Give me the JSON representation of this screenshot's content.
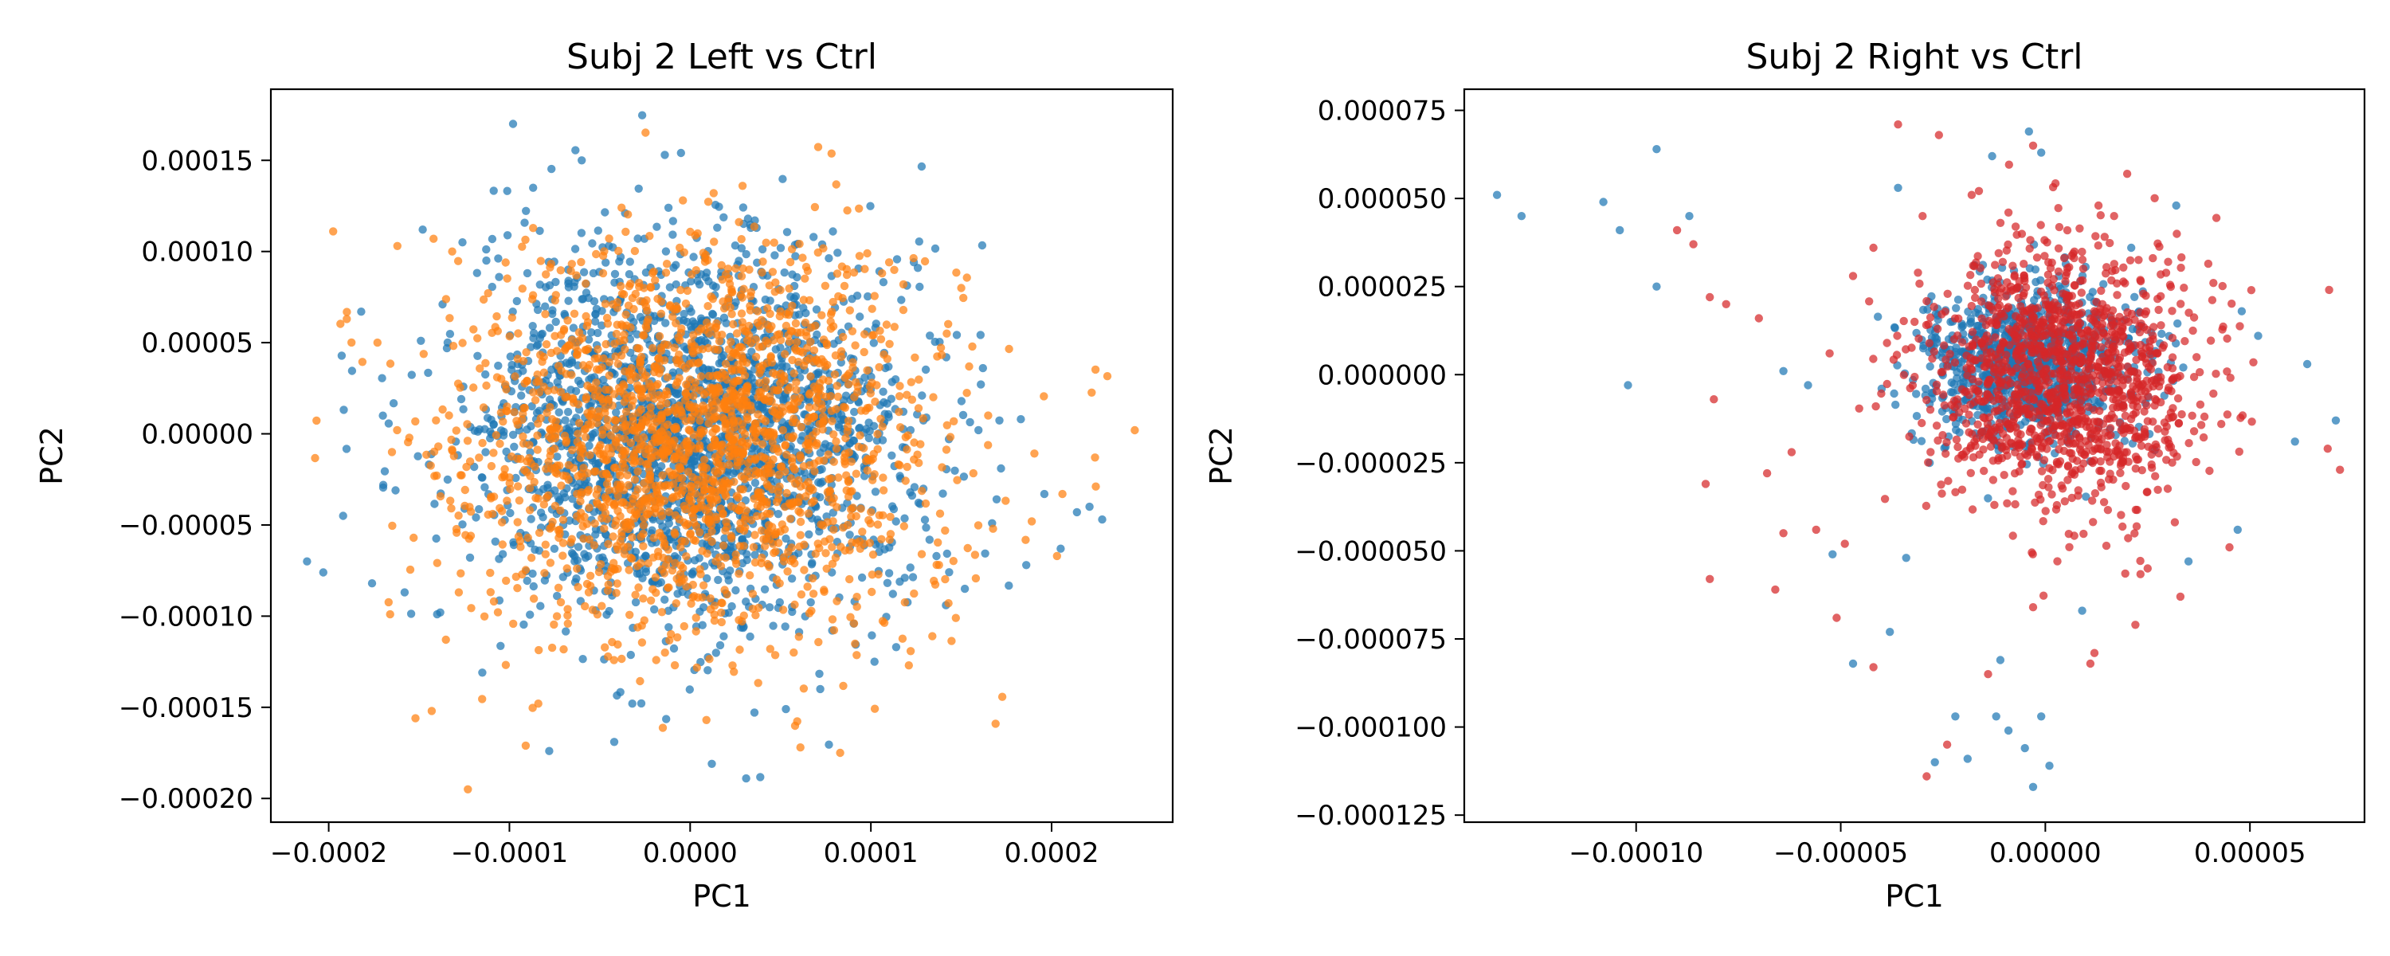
{
  "chart_data": [
    {
      "type": "scatter",
      "title": "Subj 2  Left vs Ctrl",
      "xlabel": "PC1",
      "ylabel": "PC2",
      "xlim": [
        -0.000232,
        0.000267
      ],
      "ylim": [
        -0.000213,
        0.000189
      ],
      "x_ticks": [
        -0.0002,
        -0.0001,
        0.0,
        0.0001,
        0.0002
      ],
      "x_tick_labels": [
        "−0.0002",
        "−0.0001",
        "0.0000",
        "0.0001",
        "0.0002"
      ],
      "y_ticks": [
        -0.0002,
        -0.00015,
        -0.0001,
        -5e-05,
        0.0,
        5e-05,
        0.0001,
        0.00015
      ],
      "y_tick_labels": [
        "−0.00020",
        "−0.00015",
        "−0.00010",
        "−0.00005",
        "0.00000",
        "0.00005",
        "0.00010",
        "0.00015"
      ],
      "grid": false,
      "legend": "none",
      "series": [
        {
          "color": "#1f77b4",
          "core": {
            "cx": 0.0,
            "cy": 0.0,
            "sx": 5.8e-05,
            "sy": 4.9e-05,
            "n": 2200
          },
          "outliers": [
            [
              -0.000212,
              -7e-05
            ],
            [
              -0.000203,
              -7.6e-05
            ],
            [
              -0.000176,
              -8.2e-05
            ],
            [
              -0.000163,
              -3.1e-05
            ],
            [
              -0.00017,
              1e-05
            ],
            [
              -0.000182,
              6.7e-05
            ],
            [
              -9.8e-05,
              0.00017
            ],
            [
              -6e-05,
              0.00015
            ],
            [
              -0.000148,
              0.000112
            ],
            [
              -7.8e-05,
              -0.000174
            ],
            [
              -4.2e-05,
              -0.000169
            ],
            [
              -3.2e-05,
              -0.000148
            ],
            [
              1.2e-05,
              -0.000181
            ],
            [
              3.1e-05,
              -0.000189
            ],
            [
              5.3e-05,
              -0.000151
            ],
            [
              7.2e-05,
              -0.00014
            ],
            [
              0.000102,
              -0.000125
            ],
            [
              0.000114,
              -0.000117
            ],
            [
              0.000152,
              -8.5e-05
            ],
            [
              0.000186,
              -7.2e-05
            ],
            [
              0.000205,
              -6.3e-05
            ],
            [
              0.000214,
              -4.3e-05
            ],
            [
              0.000228,
              -4.7e-05
            ],
            [
              0.000221,
              -4e-05
            ],
            [
              0.000196,
              -3.3e-05
            ],
            [
              0.000183,
              8e-06
            ],
            [
              0.000172,
              -1.9e-05
            ],
            [
              0.000162,
              3.6e-05
            ],
            [
              0.000126,
              9.1e-05
            ],
            [
              7.9e-05,
              0.000111
            ],
            [
              3.2e-05,
              0.000118
            ],
            [
              -1.2e-05,
              0.000124
            ],
            [
              -3.6e-05,
              0.000121
            ],
            [
              -0.000126,
              0.000105
            ],
            [
              -0.000137,
              7.1e-05
            ],
            [
              -0.000149,
              5.1e-05
            ],
            [
              -0.00014,
              -9.9e-05
            ],
            [
              -0.000115,
              -0.000131
            ],
            [
              -0.000158,
              -8.7e-05
            ],
            [
              -0.000192,
              -4.5e-05
            ]
          ]
        },
        {
          "color": "#ff7f0e",
          "core": {
            "cx": 5e-06,
            "cy": -2e-06,
            "sx": 6.3e-05,
            "sy": 5.1e-05,
            "n": 2000
          },
          "outliers": [
            [
              -0.000123,
              -0.000195
            ],
            [
              -0.000143,
              -0.000152
            ],
            [
              -0.000152,
              -0.000156
            ],
            [
              -9.1e-05,
              -0.000171
            ],
            [
              -8.4e-05,
              -0.000148
            ],
            [
              9e-06,
              -0.000157
            ],
            [
              6.1e-05,
              -0.000172
            ],
            [
              8.3e-05,
              -0.000175
            ],
            [
              0.000169,
              -0.000159
            ],
            [
              0.000121,
              -0.000127
            ],
            [
              0.000246,
              2e-06
            ],
            [
              0.000224,
              -1.3e-05
            ],
            [
              0.000206,
              -3.3e-05
            ],
            [
              0.000203,
              -6.7e-05
            ],
            [
              0.000189,
              -4.8e-05
            ],
            [
              0.00015,
              8e-05
            ],
            [
              0.000142,
              5.5e-05
            ],
            [
              -0.00019,
              6.3e-05
            ],
            [
              -0.000173,
              5e-05
            ],
            [
              -0.000162,
              0.000103
            ],
            [
              -0.000142,
              0.000107
            ],
            [
              -0.000165,
              -1e-05
            ],
            [
              -0.000153,
              -5.7e-05
            ],
            [
              -0.000166,
              -9.9e-05
            ],
            [
              -0.000128,
              -8.7e-05
            ],
            [
              2.9e-05,
              0.000136
            ],
            [
              1.3e-05,
              0.000132
            ],
            [
              -4e-06,
              0.000128
            ],
            [
              9.8e-05,
              9.9e-05
            ],
            [
              0.000118,
              8.2e-05
            ],
            [
              0.000147,
              -0.000101
            ],
            [
              0.000134,
              -0.000111
            ]
          ]
        }
      ]
    },
    {
      "type": "scatter",
      "title": "Subj 2  Right vs Ctrl",
      "xlabel": "PC1",
      "ylabel": "PC2",
      "xlim": [
        -0.000142,
        7.8e-05
      ],
      "ylim": [
        -0.000127,
        8.1e-05
      ],
      "x_ticks": [
        -0.0001,
        -5e-05,
        0.0,
        5e-05
      ],
      "x_tick_labels": [
        "−0.00010",
        "−0.00005",
        "0.00000",
        "0.00005"
      ],
      "y_ticks": [
        -0.000125,
        -0.0001,
        -7.5e-05,
        -5e-05,
        -2.5e-05,
        0.0,
        2.5e-05,
        5e-05,
        7.5e-05
      ],
      "y_tick_labels": [
        "−0.000125",
        "−0.000100",
        "−0.000075",
        "−0.000050",
        "−0.000025",
        "0.000000",
        "0.000025",
        "0.000050",
        "0.000075"
      ],
      "grid": false,
      "legend": "none",
      "series": [
        {
          "color": "#1f77b4",
          "core": {
            "cx": -4e-06,
            "cy": 2e-06,
            "sx": 1.3e-05,
            "sy": 1.1e-05,
            "n": 1000
          },
          "outliers": [
            [
              -0.000134,
              5.1e-05
            ],
            [
              -0.000128,
              4.5e-05
            ],
            [
              -0.000108,
              4.9e-05
            ],
            [
              -0.000104,
              4.1e-05
            ],
            [
              -9.5e-05,
              6.4e-05
            ],
            [
              -9.5e-05,
              2.5e-05
            ],
            [
              -8.7e-05,
              4.5e-05
            ],
            [
              -0.000102,
              -3e-06
            ],
            [
              -6.4e-05,
              1e-06
            ],
            [
              -5.8e-05,
              -3e-06
            ],
            [
              -5.2e-05,
              -5.1e-05
            ],
            [
              -4.7e-05,
              -8.2e-05
            ],
            [
              -3.8e-05,
              -7.3e-05
            ],
            [
              -3.4e-05,
              -5.2e-05
            ],
            [
              -2.2e-05,
              -9.7e-05
            ],
            [
              -1.9e-05,
              -0.000109
            ],
            [
              -1.2e-05,
              -9.7e-05
            ],
            [
              -9e-06,
              -0.000101
            ],
            [
              -5e-06,
              -0.000106
            ],
            [
              -1e-06,
              -9.7e-05
            ],
            [
              -3e-06,
              -0.000117
            ],
            [
              1e-06,
              -0.000111
            ],
            [
              -2.7e-05,
              -0.00011
            ],
            [
              -1.1e-05,
              -8.1e-05
            ],
            [
              -4e-06,
              6.9e-05
            ],
            [
              -1e-06,
              6.3e-05
            ],
            [
              -1.3e-05,
              6.2e-05
            ],
            [
              -3.6e-05,
              5.3e-05
            ],
            [
              3.2e-05,
              4.8e-05
            ],
            [
              2.1e-05,
              3.6e-05
            ],
            [
              4.7e-05,
              -4.4e-05
            ],
            [
              6.1e-05,
              -1.9e-05
            ],
            [
              6.4e-05,
              3e-06
            ],
            [
              7.1e-05,
              -1.3e-05
            ],
            [
              4.8e-05,
              1.8e-05
            ],
            [
              5.2e-05,
              1.1e-05
            ],
            [
              3.5e-05,
              -5.3e-05
            ],
            [
              9e-06,
              -6.7e-05
            ]
          ]
        },
        {
          "color": "#d62728",
          "core": {
            "cx": 4e-06,
            "cy": -1e-06,
            "sx": 1.6e-05,
            "sy": 1.8e-05,
            "n": 1300
          },
          "outliers": [
            [
              -9e-05,
              4.1e-05
            ],
            [
              -8.6e-05,
              3.7e-05
            ],
            [
              -8.2e-05,
              2.2e-05
            ],
            [
              -7.8e-05,
              2e-05
            ],
            [
              -8.1e-05,
              -7e-06
            ],
            [
              -7e-05,
              1.6e-05
            ],
            [
              -6.8e-05,
              -2.8e-05
            ],
            [
              -6.4e-05,
              -4.5e-05
            ],
            [
              -6.6e-05,
              -6.1e-05
            ],
            [
              -8.2e-05,
              -5.8e-05
            ],
            [
              -8.3e-05,
              -3.1e-05
            ],
            [
              -6.2e-05,
              -2.2e-05
            ],
            [
              -4.9e-05,
              -4.8e-05
            ],
            [
              -3.6e-05,
              7.1e-05
            ],
            [
              -2.6e-05,
              6.8e-05
            ],
            [
              -3e-06,
              6.5e-05
            ],
            [
              2e-05,
              5.7e-05
            ],
            [
              -1.8e-05,
              5.1e-05
            ],
            [
              3e-05,
              3.2e-05
            ],
            [
              4.3e-05,
              -1.4e-05
            ],
            [
              4.5e-05,
              -4.9e-05
            ],
            [
              7.2e-05,
              -2.7e-05
            ],
            [
              6.9e-05,
              -2.1e-05
            ],
            [
              2.5e-05,
              -5.5e-05
            ],
            [
              1.2e-05,
              -7.9e-05
            ],
            [
              1.1e-05,
              -8.2e-05
            ],
            [
              -1.4e-05,
              -8.5e-05
            ],
            [
              -2.9e-05,
              -0.000114
            ],
            [
              -2.4e-05,
              -0.000105
            ],
            [
              -4.2e-05,
              -8.3e-05
            ],
            [
              -5.1e-05,
              -6.9e-05
            ],
            [
              -5.6e-05,
              -4.4e-05
            ],
            [
              -4.2e-05,
              3.6e-05
            ],
            [
              -4.7e-05,
              2.8e-05
            ],
            [
              -3e-05,
              4.5e-05
            ],
            [
              -9e-06,
              4.6e-05
            ],
            [
              1.3e-05,
              4.8e-05
            ],
            [
              3.3e-05,
              -6.3e-05
            ],
            [
              2.2e-05,
              -7.1e-05
            ],
            [
              -3e-06,
              -6.6e-05
            ]
          ]
        }
      ]
    }
  ]
}
